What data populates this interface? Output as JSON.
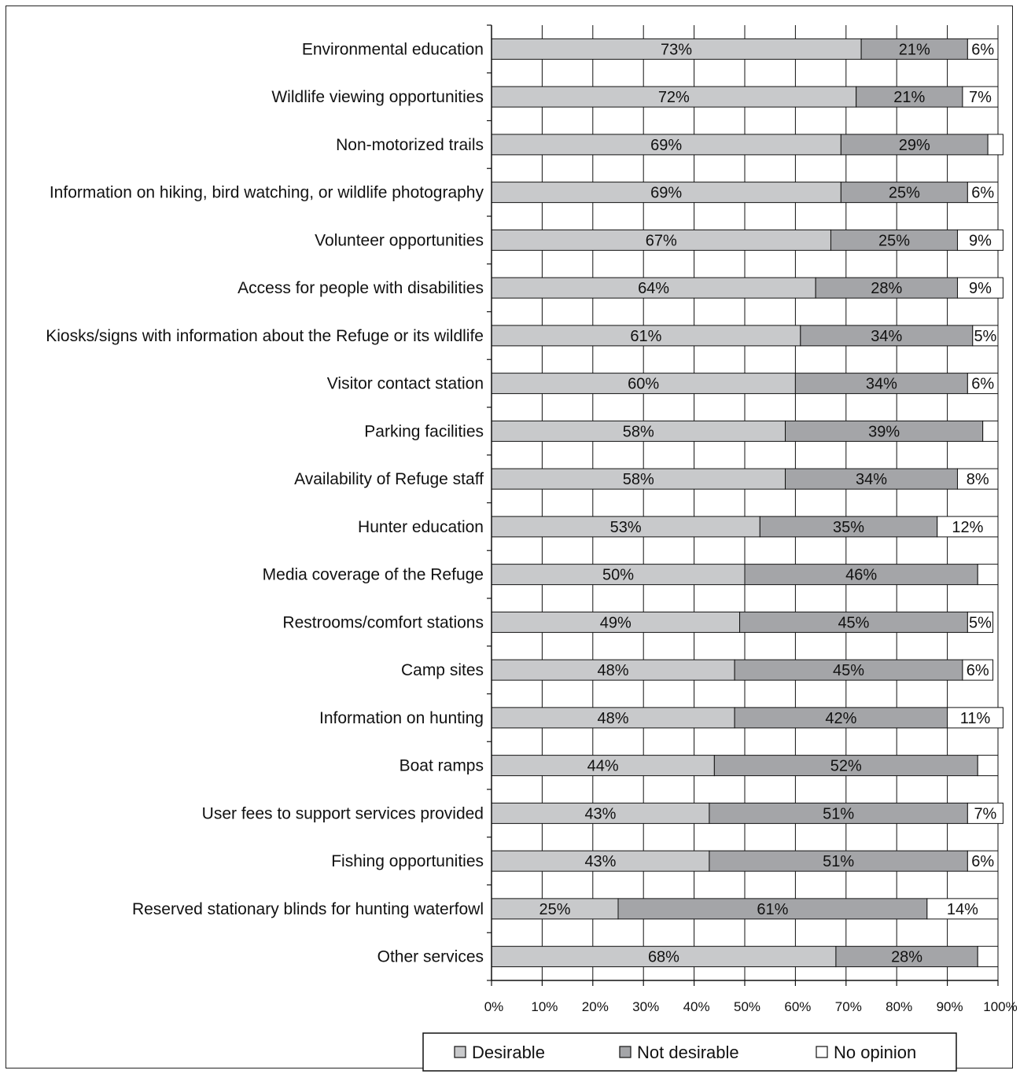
{
  "chart_data": {
    "type": "bar",
    "orientation": "horizontal",
    "stacked": "percent",
    "categories": [
      "Environmental education",
      "Wildlife viewing opportunities",
      "Non-motorized trails",
      "Information on hiking, bird watching, or wildlife photography",
      "Volunteer opportunities",
      "Access for people with disabilities",
      "Kiosks/signs with information about the Refuge or its wildlife",
      "Visitor contact station",
      "Parking facilities",
      "Availability of Refuge staff",
      "Hunter education",
      "Media coverage of the Refuge",
      "Restrooms/comfort stations",
      "Camp sites",
      "Information on hunting",
      "Boat ramps",
      "User fees to support services provided",
      "Fishing opportunities",
      "Reserved stationary blinds for hunting waterfowl",
      "Other services"
    ],
    "series": [
      {
        "name": "Desirable",
        "color": "#c8c9cb",
        "values": [
          73,
          72,
          69,
          69,
          67,
          64,
          61,
          60,
          58,
          58,
          53,
          50,
          49,
          48,
          48,
          44,
          43,
          43,
          25,
          68
        ],
        "labels": [
          "73%",
          "72%",
          "69%",
          "69%",
          "67%",
          "64%",
          "61%",
          "60%",
          "58%",
          "58%",
          "53%",
          "50%",
          "49%",
          "48%",
          "48%",
          "44%",
          "43%",
          "43%",
          "25%",
          "68%"
        ]
      },
      {
        "name": "Not desirable",
        "color": "#a4a5a8",
        "values": [
          21,
          21,
          29,
          25,
          25,
          28,
          34,
          34,
          39,
          34,
          35,
          46,
          45,
          45,
          42,
          52,
          51,
          51,
          61,
          28
        ],
        "labels": [
          "21%",
          "21%",
          "29%",
          "25%",
          "25%",
          "28%",
          "34%",
          "34%",
          "39%",
          "34%",
          "35%",
          "46%",
          "45%",
          "45%",
          "42%",
          "52%",
          "51%",
          "51%",
          "61%",
          "28%"
        ]
      },
      {
        "name": "No opinion",
        "color": "#ffffff",
        "values": [
          6,
          7,
          3,
          6,
          9,
          9,
          5,
          6,
          3,
          8,
          12,
          4,
          5,
          6,
          11,
          4,
          7,
          6,
          14,
          4
        ],
        "labels": [
          "6%",
          "7%",
          "",
          "6%",
          "9%",
          "9%",
          "5%",
          "6%",
          "",
          "8%",
          "12%",
          "",
          "5%",
          "6%",
          "11%",
          "",
          "7%",
          "6%",
          "14%",
          ""
        ]
      }
    ],
    "x_ticks": [
      "0%",
      "10%",
      "20%",
      "30%",
      "40%",
      "50%",
      "60%",
      "70%",
      "80%",
      "90%",
      "100%"
    ],
    "xlim": [
      0,
      100
    ],
    "grid": "vertical",
    "legend": "bottom"
  }
}
